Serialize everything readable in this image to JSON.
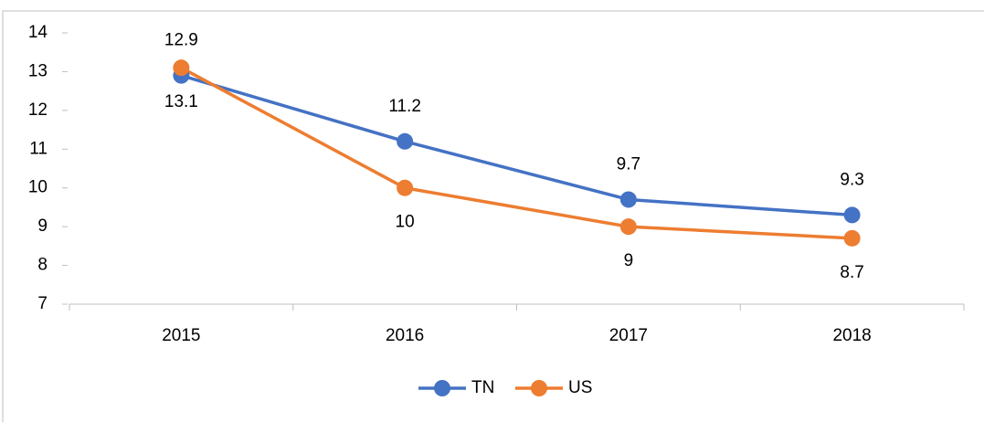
{
  "chart_data": {
    "type": "line",
    "categories": [
      "2015",
      "2016",
      "2017",
      "2018"
    ],
    "series": [
      {
        "name": "TN",
        "color": "#4472c4",
        "values": [
          12.9,
          11.2,
          9.7,
          9.3
        ]
      },
      {
        "name": "US",
        "color": "#ed7d31",
        "values": [
          13.1,
          10,
          9,
          8.7
        ]
      }
    ],
    "ylim": [
      7,
      14
    ],
    "yticks": [
      7,
      8,
      9,
      10,
      11,
      12,
      13,
      14
    ],
    "grid": false,
    "legend": "bottom"
  }
}
